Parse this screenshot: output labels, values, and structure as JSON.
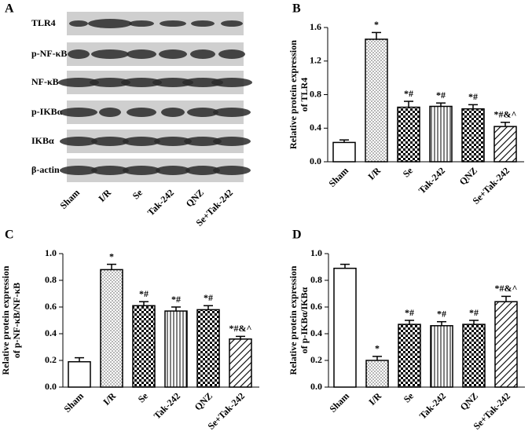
{
  "blot": {
    "label": "A",
    "rows": [
      "TLR4",
      "p-NF-κB",
      "NF-κB",
      "p-IKBα",
      "IKBα",
      "β-actin"
    ],
    "lanes": [
      "Sham",
      "I/R",
      "Se",
      "Tak-242",
      "QNZ",
      "Se+Tak-242"
    ]
  },
  "chart_data": [
    {
      "type": "bar",
      "panel": "B",
      "ylabel": [
        "Relative protein expression",
        "of TLR4"
      ],
      "categories": [
        "Sham",
        "I/R",
        "Se",
        "Tak-242",
        "QNZ",
        "Se+Tak-242"
      ],
      "values": [
        0.23,
        1.46,
        0.65,
        0.66,
        0.63,
        0.42
      ],
      "errors": [
        0.03,
        0.08,
        0.07,
        0.04,
        0.05,
        0.05
      ],
      "annotations": [
        null,
        "*",
        "*#",
        "*#",
        "*#",
        "*#&^"
      ],
      "patterns": [
        "none",
        "dots",
        "checker",
        "vlines",
        "checker",
        "diagonal"
      ],
      "color": "#000000",
      "ylim": [
        0,
        1.6
      ],
      "yticks": [
        {
          "value": 0,
          "label": "0.0"
        },
        0.4,
        0.8,
        1.2,
        1.6
      ]
    },
    {
      "type": "bar",
      "panel": "C",
      "ylabel": [
        "Relative protein expression",
        "of p-NF-κB/NF-κB"
      ],
      "categories": [
        "Sham",
        "I/R",
        "Se",
        "Tak-242",
        "QNZ",
        "Se+Tak-242"
      ],
      "values": [
        0.19,
        0.88,
        0.61,
        0.57,
        0.58,
        0.36
      ],
      "errors": [
        0.03,
        0.04,
        0.03,
        0.03,
        0.03,
        0.02
      ],
      "annotations": [
        null,
        "*",
        "*#",
        "*#",
        "*#",
        "*#&^"
      ],
      "patterns": [
        "none",
        "dots",
        "checker",
        "vlines",
        "checker",
        "diagonal"
      ],
      "color": "#000000",
      "ylim": [
        0,
        1.0
      ],
      "yticks": [
        {
          "value": 0,
          "label": "0.0"
        },
        0.2,
        0.4,
        0.6,
        0.8,
        {
          "value": 1.0,
          "label": "1.0"
        }
      ]
    },
    {
      "type": "bar",
      "panel": "D",
      "ylabel": [
        "Relative protein expression",
        "of p-IKBα/IKBα"
      ],
      "categories": [
        "Sham",
        "I/R",
        "Se",
        "Tak-242",
        "QNZ",
        "Se+Tak-242"
      ],
      "values": [
        0.89,
        0.2,
        0.47,
        0.46,
        0.47,
        0.64
      ],
      "errors": [
        0.03,
        0.03,
        0.03,
        0.03,
        0.03,
        0.04
      ],
      "annotations": [
        null,
        "*",
        "*#",
        "*#",
        "*#",
        "*#&^"
      ],
      "patterns": [
        "none",
        "dots",
        "checker",
        "vlines",
        "checker",
        "diagonal"
      ],
      "color": "#000000",
      "ylim": [
        0,
        1.0
      ],
      "yticks": [
        {
          "value": 0,
          "label": "0.0"
        },
        0.2,
        0.4,
        0.6,
        0.8,
        {
          "value": 1.0,
          "label": "1.0"
        }
      ]
    }
  ]
}
